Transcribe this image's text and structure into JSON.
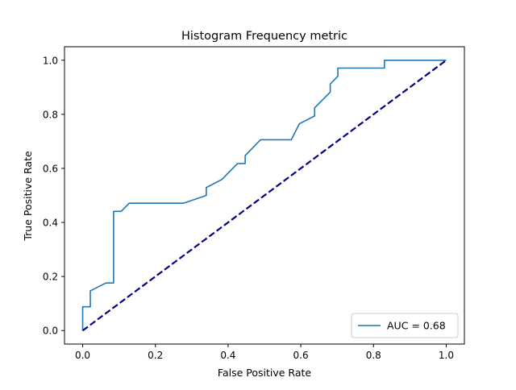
{
  "chart_data": {
    "type": "line",
    "title": "Histogram Frequency metric",
    "xlabel": "False Positive Rate",
    "ylabel": "True Positive Rate",
    "xlim": [
      -0.05,
      1.05
    ],
    "ylim": [
      -0.05,
      1.05
    ],
    "x_ticks": [
      0.0,
      0.2,
      0.4,
      0.6,
      0.8,
      1.0
    ],
    "y_ticks": [
      0.0,
      0.2,
      0.4,
      0.6,
      0.8,
      1.0
    ],
    "x_tick_labels": [
      "0.0",
      "0.2",
      "0.4",
      "0.6",
      "0.8",
      "1.0"
    ],
    "y_tick_labels": [
      "0.0",
      "0.2",
      "0.4",
      "0.6",
      "0.8",
      "1.0"
    ],
    "grid": false,
    "legend_position": "lower-right",
    "series": [
      {
        "name": "AUC = 0.68",
        "color": "#1f77b4",
        "style": "solid",
        "points": [
          [
            0.0,
            0.0
          ],
          [
            0.0,
            0.088
          ],
          [
            0.021,
            0.088
          ],
          [
            0.021,
            0.147
          ],
          [
            0.064,
            0.176
          ],
          [
            0.085,
            0.176
          ],
          [
            0.085,
            0.441
          ],
          [
            0.106,
            0.441
          ],
          [
            0.128,
            0.471
          ],
          [
            0.277,
            0.471
          ],
          [
            0.34,
            0.5
          ],
          [
            0.34,
            0.529
          ],
          [
            0.383,
            0.559
          ],
          [
            0.426,
            0.618
          ],
          [
            0.447,
            0.618
          ],
          [
            0.447,
            0.647
          ],
          [
            0.489,
            0.706
          ],
          [
            0.574,
            0.706
          ],
          [
            0.596,
            0.765
          ],
          [
            0.638,
            0.794
          ],
          [
            0.638,
            0.824
          ],
          [
            0.681,
            0.882
          ],
          [
            0.681,
            0.912
          ],
          [
            0.702,
            0.941
          ],
          [
            0.702,
            0.971
          ],
          [
            0.83,
            0.971
          ],
          [
            0.83,
            1.0
          ],
          [
            1.0,
            1.0
          ]
        ]
      },
      {
        "name": "",
        "color": "#000080",
        "style": "dashed",
        "points": [
          [
            0.0,
            0.0
          ],
          [
            1.0,
            1.0
          ]
        ]
      }
    ]
  }
}
